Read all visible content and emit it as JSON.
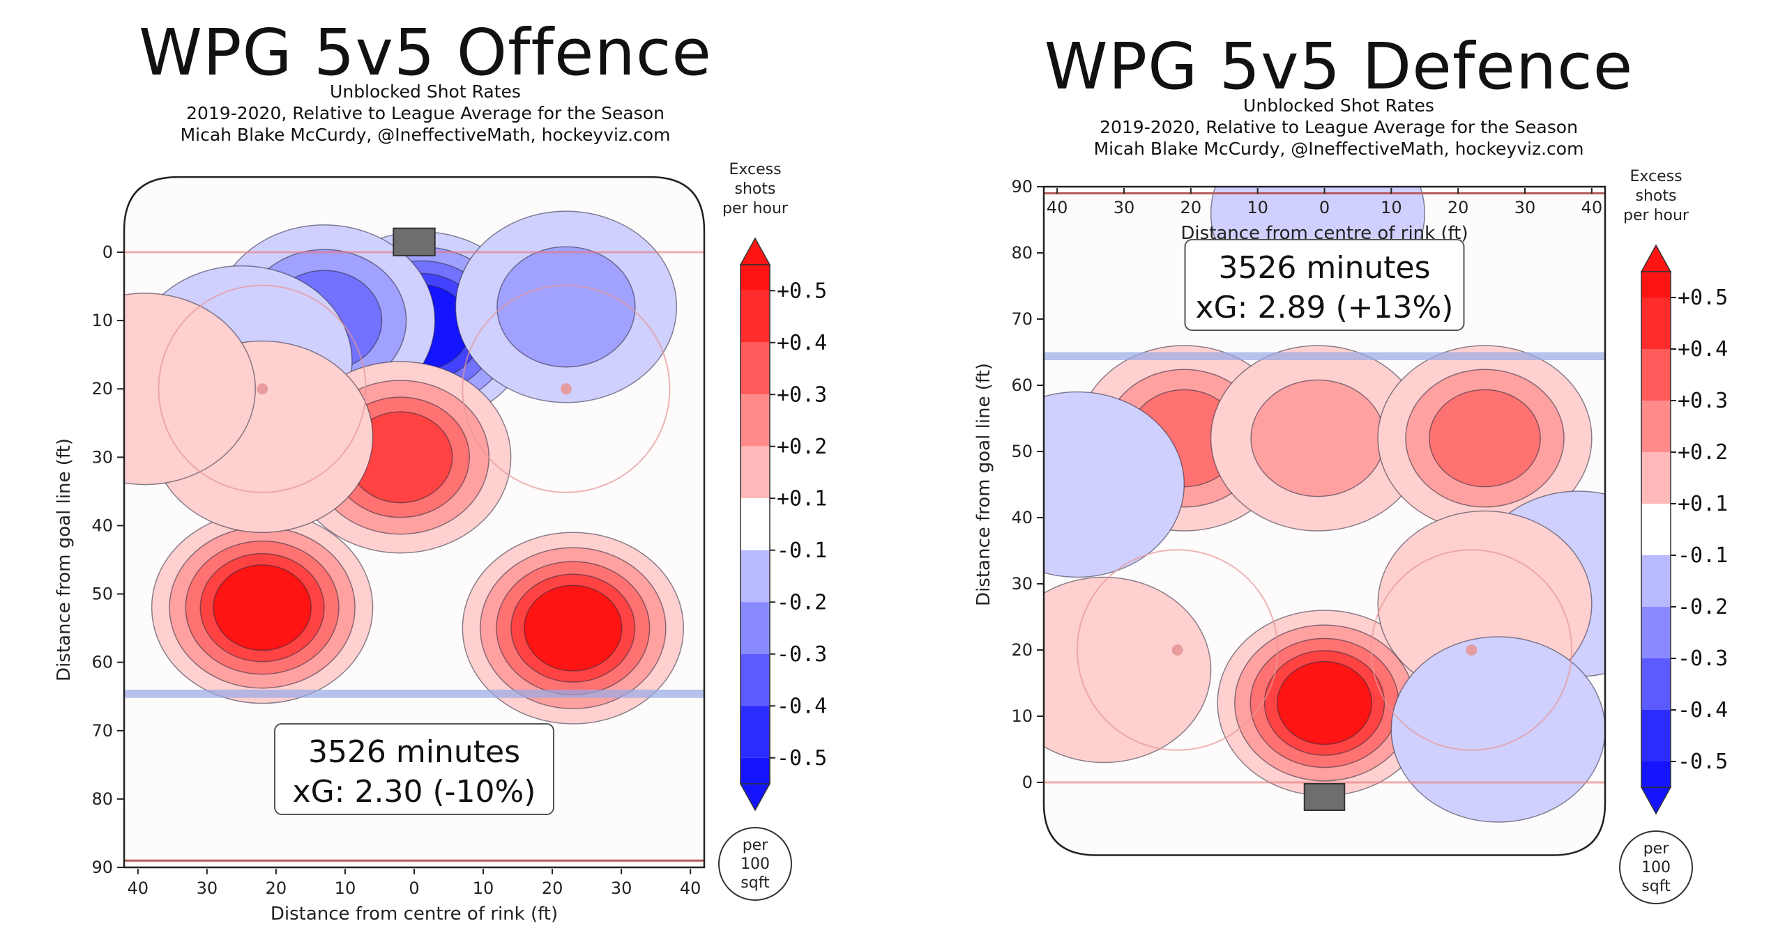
{
  "chart_data": [
    {
      "type": "heatmap",
      "title": "WPG 5v5 Offence",
      "subtitle_lines": [
        "Unblocked Shot Rates",
        "2019-2020, Relative to League Average for the Season",
        "Micah Blake McCurdy, @IneffectiveMath, hockeyviz.com"
      ],
      "xlabel": "Distance from centre of rink (ft)",
      "ylabel": "Distance from goal line (ft)",
      "x_ticks": [
        "40",
        "30",
        "20",
        "10",
        "0",
        "10",
        "20",
        "30",
        "40"
      ],
      "y_ticks": [
        "0",
        "10",
        "20",
        "30",
        "40",
        "50",
        "60",
        "70",
        "80",
        "90"
      ],
      "xlim": [
        -42,
        42
      ],
      "ylim": [
        -11,
        90
      ],
      "y_inverted": true,
      "colorbar": {
        "title_lines": [
          "Excess",
          "shots",
          "per hour"
        ],
        "labels": [
          "+0.5",
          "+0.4",
          "+0.3",
          "+0.2",
          "+0.1",
          "-0.1",
          "-0.2",
          "-0.3",
          "-0.4",
          "-0.5"
        ],
        "footer_lines": [
          "per",
          "100",
          "sqft"
        ]
      },
      "info_lines": [
        "3526 minutes",
        "xG: 2.30 (-10%)"
      ],
      "hot_spots": [
        {
          "x": 1,
          "y": 11,
          "value": -0.5
        },
        {
          "x": -13,
          "y": 10,
          "value": -0.3
        },
        {
          "x": 22,
          "y": 8,
          "value": -0.2
        },
        {
          "x": -25,
          "y": 16,
          "value": -0.15
        },
        {
          "x": -2,
          "y": 30,
          "value": 0.4
        },
        {
          "x": -22,
          "y": 52,
          "value": 0.45
        },
        {
          "x": 23,
          "y": 55,
          "value": 0.45
        },
        {
          "x": -22,
          "y": 27,
          "value": 0.15
        },
        {
          "x": -39,
          "y": 20,
          "value": 0.15
        }
      ]
    },
    {
      "type": "heatmap",
      "title": "WPG 5v5 Defence",
      "subtitle_lines": [
        "Unblocked Shot Rates",
        "2019-2020, Relative to League Average for the Season",
        "Micah Blake McCurdy, @IneffectiveMath, hockeyviz.com"
      ],
      "xlabel": "Distance from centre of rink (ft)",
      "ylabel": "Distance from goal line (ft)",
      "x_ticks": [
        "40",
        "30",
        "20",
        "10",
        "0",
        "10",
        "20",
        "30",
        "40"
      ],
      "y_ticks": [
        "0",
        "10",
        "20",
        "30",
        "40",
        "50",
        "60",
        "70",
        "80",
        "90"
      ],
      "xlim": [
        -42,
        42
      ],
      "ylim": [
        -11,
        90
      ],
      "y_inverted": false,
      "colorbar": {
        "title_lines": [
          "Excess",
          "shots",
          "per hour"
        ],
        "labels": [
          "+0.5",
          "+0.4",
          "+0.3",
          "+0.2",
          "+0.1",
          "-0.1",
          "-0.2",
          "-0.3",
          "-0.4",
          "-0.5"
        ],
        "footer_lines": [
          "per",
          "100",
          "sqft"
        ]
      },
      "info_lines": [
        "3526 minutes",
        "xG: 2.89 (+13%)"
      ],
      "hot_spots": [
        {
          "x": 0,
          "y": 12,
          "value": 0.5
        },
        {
          "x": -21,
          "y": 52,
          "value": 0.25
        },
        {
          "x": -1,
          "y": 52,
          "value": 0.2
        },
        {
          "x": 24,
          "y": 52,
          "value": 0.3
        },
        {
          "x": -37,
          "y": 45,
          "value": -0.15
        },
        {
          "x": 38,
          "y": 30,
          "value": -0.15
        },
        {
          "x": 24,
          "y": 27,
          "value": 0.15
        },
        {
          "x": -33,
          "y": 17,
          "value": 0.15
        },
        {
          "x": 26,
          "y": 8,
          "value": -0.15
        },
        {
          "x": -1,
          "y": 86,
          "value": -0.15
        }
      ]
    }
  ]
}
